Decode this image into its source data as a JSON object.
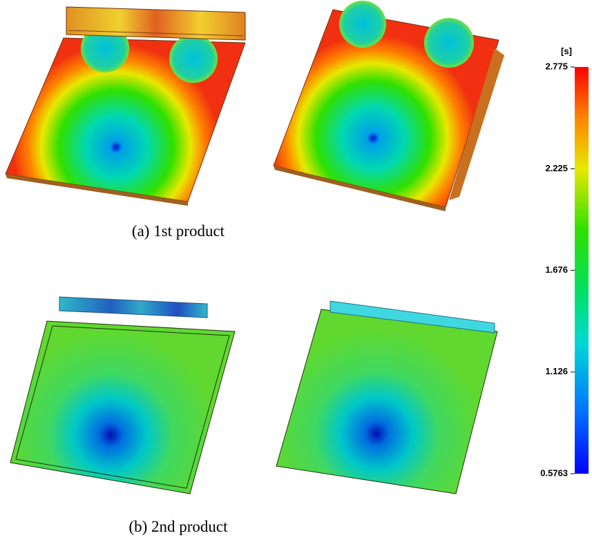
{
  "captions": [
    "(a)  1st  product",
    "(b)  2nd  product"
  ],
  "colorbar": {
    "unit": "[s]",
    "range": [
      0.5763,
      2.775
    ],
    "ticks": [
      2.775,
      2.225,
      1.676,
      1.126,
      0.5763
    ]
  }
}
